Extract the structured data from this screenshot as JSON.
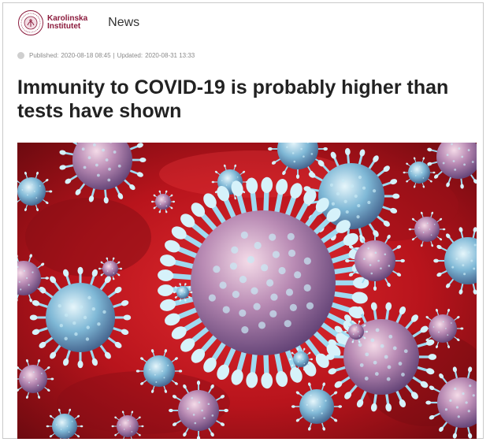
{
  "brand": {
    "name_line1": "Karolinska",
    "name_line2": "Institutet",
    "logo_icon": "karolinska-seal-icon",
    "color": "#8b1a3c"
  },
  "nav": {
    "news_label": "News"
  },
  "meta": {
    "published_label": "Published:",
    "published_value": "2020-08-18 08:45",
    "separator": "|",
    "updated_label": "Updated:",
    "updated_value": "2020-08-31 13:33"
  },
  "article": {
    "title": "Immunity to COVID-19 is probably higher than tests have shown",
    "hero_image": "coronavirus-illustration"
  },
  "colors": {
    "background": "#ffffff",
    "title": "#222222",
    "meta": "#8a8a8a",
    "hero_red": "#c4161c"
  }
}
